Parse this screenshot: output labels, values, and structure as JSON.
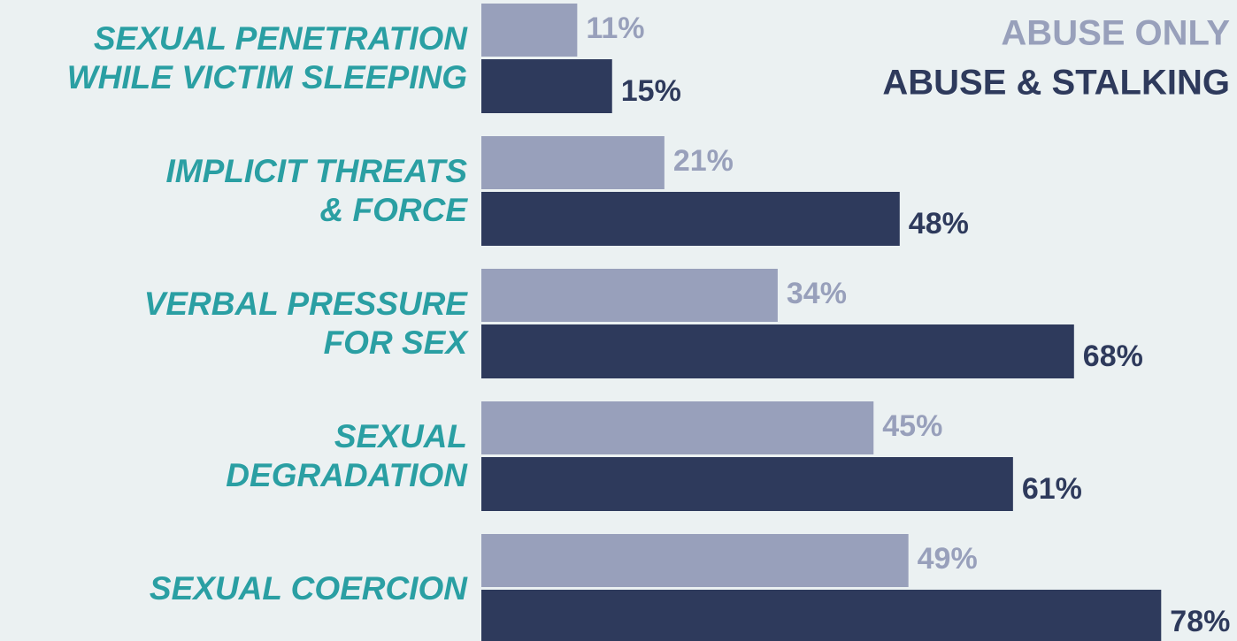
{
  "chart_data": {
    "type": "bar",
    "orientation": "horizontal",
    "categories": [
      [
        "SEXUAL PENETRATION",
        "WHILE VICTIM SLEEPING"
      ],
      [
        "IMPLICIT THREATS",
        "& FORCE"
      ],
      [
        "VERBAL PRESSURE",
        "FOR SEX"
      ],
      [
        "SEXUAL",
        "DEGRADATION"
      ],
      [
        "SEXUAL COERCION"
      ]
    ],
    "series": [
      {
        "name": "ABUSE ONLY",
        "color": "#98a0bb",
        "values": [
          11,
          21,
          34,
          45,
          49
        ],
        "value_labels": [
          "11%",
          "21%",
          "34%",
          "45%",
          "49%"
        ]
      },
      {
        "name": "ABUSE & STALKING",
        "color": "#2e3a5c",
        "values": [
          15,
          48,
          68,
          61,
          78
        ],
        "value_labels": [
          "15%",
          "48%",
          "68%",
          "61%",
          "78%"
        ]
      }
    ],
    "category_color": "#2a9fa3",
    "legend": "upper right"
  }
}
